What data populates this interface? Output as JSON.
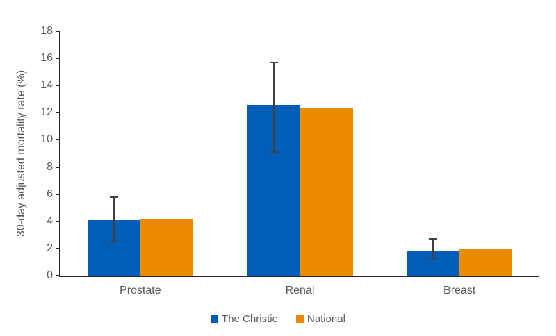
{
  "chart_data": {
    "type": "bar",
    "categories": [
      "Prostate",
      "Renal",
      "Breast"
    ],
    "series": [
      {
        "name": "The Christie",
        "color": "#005EB8",
        "values": [
          4.1,
          12.6,
          1.8
        ],
        "error_bars": {
          "upper": [
            5.8,
            15.7,
            2.7
          ],
          "lower": [
            2.5,
            9.1,
            1.3
          ]
        }
      },
      {
        "name": "National",
        "color": "#ED8B00",
        "values": [
          4.2,
          12.4,
          2.0
        ]
      }
    ],
    "title": "",
    "xlabel": "",
    "ylabel": "30-day adjusted mortality rate (%)",
    "ylim": [
      0,
      18
    ],
    "ytick_step": 2,
    "yticks": [
      0,
      2,
      4,
      6,
      8,
      10,
      12,
      14,
      16,
      18
    ],
    "grid": false,
    "legend_position": "bottom",
    "plot_background": "#ffffff"
  },
  "colors": {
    "axis_line": "#262626",
    "tick_text": "#595959",
    "error_bar": "#404040",
    "background": "#ffffff"
  }
}
